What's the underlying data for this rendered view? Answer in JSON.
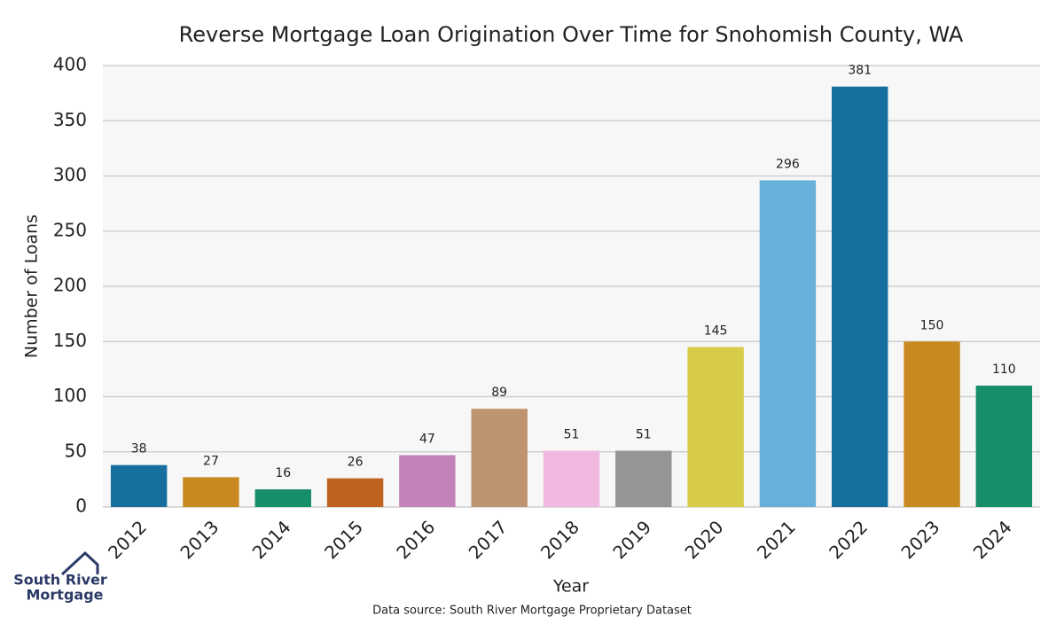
{
  "chart_data": {
    "type": "bar",
    "title": "Reverse Mortgage Loan Origination Over Time for Snohomish County, WA",
    "x_label": "Year",
    "y_label": "Number of Loans",
    "categories": [
      "2012",
      "2013",
      "2014",
      "2015",
      "2016",
      "2017",
      "2018",
      "2019",
      "2020",
      "2021",
      "2022",
      "2023",
      "2024"
    ],
    "values": [
      38,
      27,
      16,
      26,
      47,
      89,
      51,
      51,
      145,
      296,
      381,
      150,
      110
    ],
    "colors": [
      "#176fa0",
      "#c88a20",
      "#168e6a",
      "#bf6320",
      "#c383b8",
      "#be9370",
      "#f1b8e0",
      "#959595",
      "#d6cc4a",
      "#66b0da",
      "#176fa0",
      "#c88a20",
      "#168e6a"
    ],
    "ylim": [
      0,
      400
    ],
    "yticks": [
      0,
      50,
      100,
      150,
      200,
      250,
      300,
      350,
      400
    ],
    "grid": true,
    "source": "Data source: South River Mortgage Proprietary Dataset",
    "logo": [
      "South River",
      "Mortgage"
    ]
  }
}
